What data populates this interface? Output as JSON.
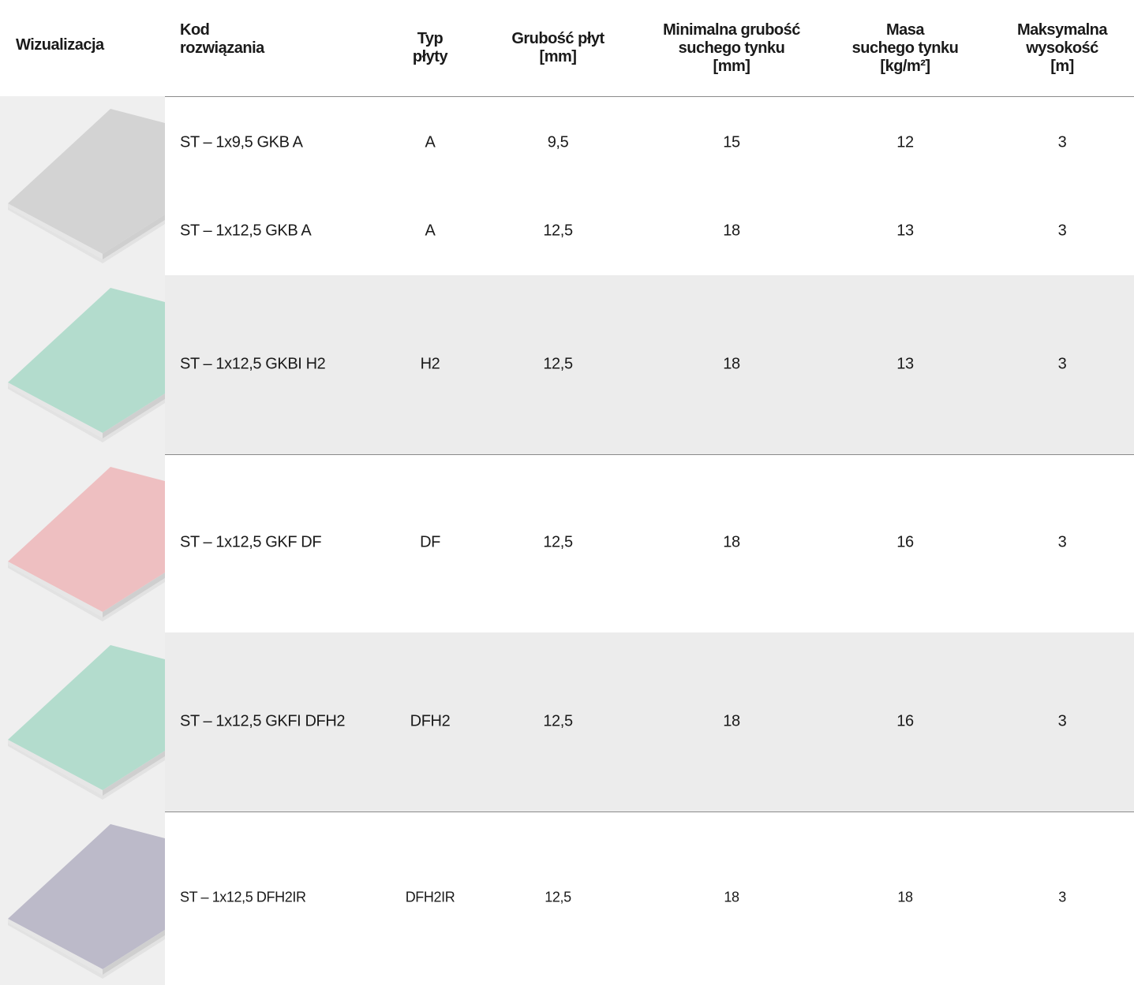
{
  "header": {
    "columns": [
      "Wizualizacja",
      "Kod\nrozwiązania",
      "Typ\npłyty",
      "Grubość płyt\n[mm]",
      "Minimalna grubość\nsuchego tynku\n[mm]",
      "Masa\nsuchego tynku\n[kg/m²]",
      "Maksymalna\nwysokość\n[m]"
    ]
  },
  "groups": [
    {
      "rows": [
        [
          "ST – 1x9,5 GKB A",
          "A",
          "9,5",
          "15",
          "12",
          "3"
        ],
        [
          "ST – 1x12,5 GKB A",
          "A",
          "12,5",
          "18",
          "13",
          "3"
        ]
      ]
    },
    {
      "rows": [
        [
          "ST – 1x12,5 GKBI H2",
          "H2",
          "12,5",
          "18",
          "13",
          "3"
        ]
      ]
    },
    {
      "rows": [
        [
          "ST – 1x12,5 GKF DF",
          "DF",
          "12,5",
          "18",
          "16",
          "3"
        ]
      ]
    },
    {
      "rows": [
        [
          "ST – 1x12,5 GKFI DFH2",
          "DFH2",
          "12,5",
          "18",
          "16",
          "3"
        ]
      ]
    },
    {
      "rows": [
        [
          "ST – 1x12,5 DFH2IR",
          "DFH2IR",
          "12,5",
          "18",
          "18",
          "3"
        ]
      ]
    }
  ]
}
